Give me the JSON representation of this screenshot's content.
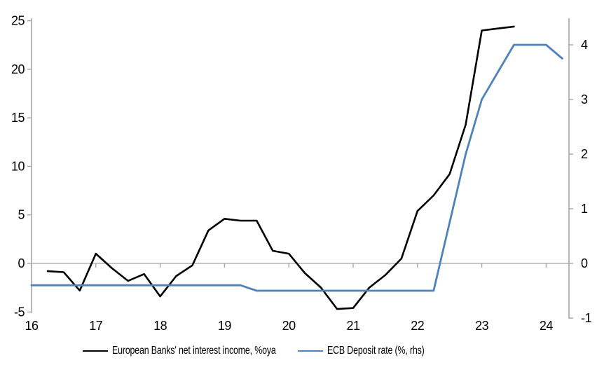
{
  "chart_data": {
    "type": "line",
    "title": "",
    "background": "#ffffff",
    "axis_color": "#a6a6a6",
    "zero_line_color": "#b3b3b3",
    "text_color": "#000000",
    "x_axis": {
      "tick_labels": [
        "16",
        "17",
        "18",
        "19",
        "20",
        "21",
        "22",
        "23",
        "24"
      ],
      "tick_values": [
        16,
        17,
        18,
        19,
        20,
        21,
        22,
        23,
        24
      ],
      "range": [
        16,
        24.36
      ]
    },
    "left_axis": {
      "tick_labels": [
        "25",
        "20",
        "15",
        "10",
        "5",
        "0",
        "-5"
      ],
      "tick_values": [
        25,
        20,
        15,
        10,
        5,
        0,
        -5
      ],
      "range": [
        -5,
        25
      ]
    },
    "right_axis": {
      "tick_labels": [
        "4",
        "3",
        "2",
        "1",
        "0",
        "-1"
      ],
      "tick_values": [
        4,
        3,
        2,
        1,
        0,
        -1
      ],
      "range": [
        -1,
        4.5
      ]
    },
    "legend_position": "bottom",
    "series": [
      {
        "name": "European Banks' net interest income, %oya",
        "axis": "left",
        "color": "#000000",
        "width": 2.6,
        "x": [
          16.25,
          16.5,
          16.75,
          17.0,
          17.25,
          17.5,
          17.75,
          18.0,
          18.25,
          18.5,
          18.75,
          19.0,
          19.25,
          19.5,
          19.75,
          20.0,
          20.25,
          20.5,
          20.75,
          21.0,
          21.25,
          21.5,
          21.75,
          22.0,
          22.25,
          22.5,
          22.75,
          23.0,
          23.25,
          23.5
        ],
        "values": [
          -0.8,
          -0.9,
          -2.8,
          1.0,
          -0.5,
          -1.8,
          -1.1,
          -3.4,
          -1.3,
          -0.2,
          3.4,
          4.6,
          4.4,
          4.4,
          1.3,
          1.0,
          -1.0,
          -2.5,
          -4.7,
          -4.6,
          -2.5,
          -1.2,
          0.5,
          5.4,
          7.0,
          9.2,
          14.3,
          24.0,
          24.2,
          24.4
        ]
      },
      {
        "name": "ECB Deposit rate (%, rhs)",
        "axis": "right",
        "color": "#4f81bd",
        "width": 2.8,
        "x": [
          16.0,
          16.25,
          16.5,
          16.75,
          17.0,
          17.25,
          17.5,
          17.75,
          18.0,
          18.25,
          18.5,
          18.75,
          19.0,
          19.25,
          19.5,
          19.75,
          20.0,
          20.25,
          20.5,
          20.75,
          21.0,
          21.25,
          21.5,
          21.75,
          22.0,
          22.25,
          22.5,
          22.75,
          23.0,
          23.25,
          23.5,
          23.75,
          24.0,
          24.25
        ],
        "values": [
          -0.4,
          -0.4,
          -0.4,
          -0.4,
          -0.4,
          -0.4,
          -0.4,
          -0.4,
          -0.4,
          -0.4,
          -0.4,
          -0.4,
          -0.4,
          -0.4,
          -0.5,
          -0.5,
          -0.5,
          -0.5,
          -0.5,
          -0.5,
          -0.5,
          -0.5,
          -0.5,
          -0.5,
          -0.5,
          -0.5,
          0.75,
          2.0,
          3.0,
          3.5,
          4.0,
          4.0,
          4.0,
          3.75
        ]
      }
    ]
  }
}
